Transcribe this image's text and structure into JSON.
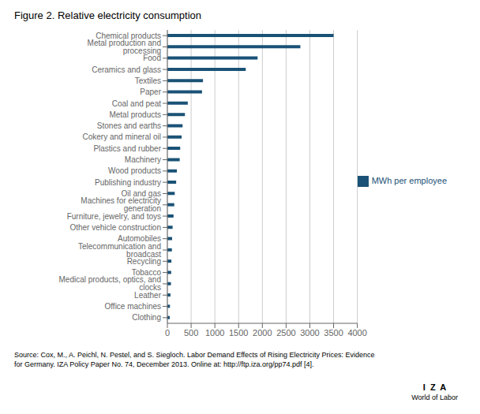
{
  "chart_data": {
    "type": "bar",
    "orientation": "horizontal",
    "title": "Figure 2. Relative electricity consumption",
    "categories": [
      "Chemical products",
      "Metal production and processing",
      "Food",
      "Ceramics and glass",
      "Textiles",
      "Paper",
      "Coal and peat",
      "Metal products",
      "Stones and earths",
      "Cokery and mineral oil",
      "Plastics and rubber",
      "Machinery",
      "Wood products",
      "Publishing industry",
      "Oil and gas",
      "Machines for electricity generation",
      "Furniture, jewelry, and toys",
      "Other vehicle construction",
      "Automobiles",
      "Telecommunication and broadcast",
      "Recycling",
      "Tobacco",
      "Medical products, optics, and clocks",
      "Leather",
      "Office machines",
      "Clothing"
    ],
    "series": [
      {
        "name": "MWh per employee",
        "color": "#1A5276",
        "values": [
          3500,
          2800,
          1900,
          1650,
          750,
          730,
          430,
          370,
          320,
          300,
          270,
          260,
          200,
          185,
          155,
          145,
          130,
          110,
          100,
          95,
          85,
          80,
          75,
          65,
          55,
          50
        ]
      }
    ],
    "xlim": [
      0,
      4000
    ],
    "xticks": [
      0,
      500,
      1000,
      1500,
      2000,
      2500,
      3000,
      3500,
      4000
    ],
    "grid": true,
    "legend": "right",
    "annotations": [
      "Source: Cox, M., A. Peichl, N. Pestel, and S. Siegloch. Labor Demand Effects of Rising Electricity Prices: Evidence",
      "for Germany. IZA Policy Paper No. 74, December 2013. Online at: http://ftp.iza.org/pp74.pdf [4].",
      "I  Z  A",
      "World of Labor"
    ]
  }
}
